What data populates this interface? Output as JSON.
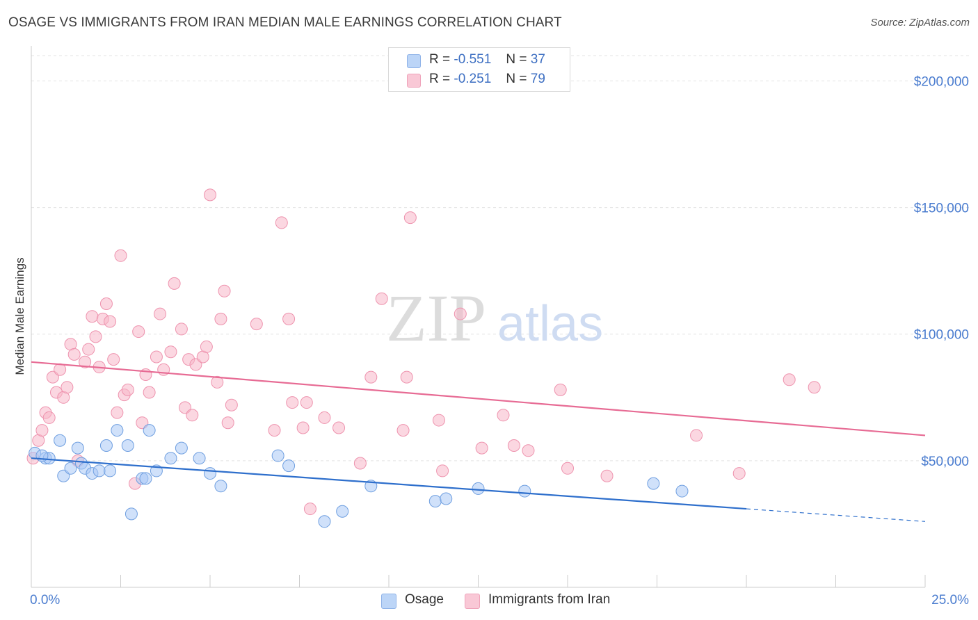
{
  "title": "OSAGE VS IMMIGRANTS FROM IRAN MEDIAN MALE EARNINGS CORRELATION CHART",
  "source": "Source: ZipAtlas.com",
  "watermark": {
    "zip": "ZIP",
    "atlas": "atlas"
  },
  "legend": {
    "rows": [
      {
        "r_label": "R =",
        "r_value": "-0.551",
        "n_label": "N =",
        "n_value": "37",
        "color": "#a9c8f5"
      },
      {
        "r_label": "R =",
        "r_value": "-0.251",
        "n_label": "N =",
        "n_value": "79",
        "color": "#f7b6c9"
      }
    ]
  },
  "bottom_legend": {
    "osage": "Osage",
    "iran": "Immigrants from Iran"
  },
  "chart_data": {
    "type": "scatter",
    "title": "OSAGE VS IMMIGRANTS FROM IRAN MEDIAN MALE EARNINGS CORRELATION CHART",
    "xlabel": "",
    "ylabel": "Median Male Earnings",
    "xlim": [
      0,
      25
    ],
    "ylim": [
      0,
      210000
    ],
    "x_tick_labels": [
      "0.0%",
      "25.0%"
    ],
    "y_ticks": [
      50000,
      100000,
      150000,
      200000
    ],
    "y_tick_labels": [
      "$50,000",
      "$100,000",
      "$150,000",
      "$200,000"
    ],
    "grid": "horizontal dashed",
    "legend_position": "top-center",
    "series": [
      {
        "name": "Osage",
        "color": "#a9c8f5",
        "stroke": "#6f9fe0",
        "trend_color": "#2e6fcc",
        "trend": {
          "x0": 0,
          "y0": 51000,
          "x1": 20,
          "y1": 31000,
          "dash_to": 25,
          "dash_y": 26000
        },
        "points": [
          [
            0.1,
            53000
          ],
          [
            0.4,
            51000
          ],
          [
            0.8,
            58000
          ],
          [
            0.5,
            51000
          ],
          [
            0.9,
            44000
          ],
          [
            1.1,
            47000
          ],
          [
            1.3,
            55000
          ],
          [
            1.4,
            49000
          ],
          [
            1.5,
            47000
          ],
          [
            1.7,
            45000
          ],
          [
            1.9,
            46000
          ],
          [
            2.1,
            56000
          ],
          [
            2.2,
            46000
          ],
          [
            2.4,
            62000
          ],
          [
            2.7,
            56000
          ],
          [
            2.8,
            29000
          ],
          [
            3.1,
            43000
          ],
          [
            3.2,
            43000
          ],
          [
            3.3,
            62000
          ],
          [
            3.5,
            46000
          ],
          [
            3.9,
            51000
          ],
          [
            4.2,
            55000
          ],
          [
            4.7,
            51000
          ],
          [
            5.0,
            45000
          ],
          [
            5.3,
            40000
          ],
          [
            6.9,
            52000
          ],
          [
            7.2,
            48000
          ],
          [
            8.2,
            26000
          ],
          [
            8.7,
            30000
          ],
          [
            9.5,
            40000
          ],
          [
            11.3,
            34000
          ],
          [
            11.6,
            35000
          ],
          [
            12.5,
            39000
          ],
          [
            13.8,
            38000
          ],
          [
            17.4,
            41000
          ],
          [
            18.2,
            38000
          ],
          [
            0.3,
            52000
          ]
        ]
      },
      {
        "name": "Immigrants from Iran",
        "color": "#f7b6c9",
        "stroke": "#ee93ae",
        "trend_color": "#e76b94",
        "trend": {
          "x0": 0,
          "y0": 89000,
          "x1": 25,
          "y1": 60000
        },
        "points": [
          [
            0.05,
            51000
          ],
          [
            0.2,
            58000
          ],
          [
            0.3,
            62000
          ],
          [
            0.4,
            69000
          ],
          [
            0.5,
            67000
          ],
          [
            0.6,
            83000
          ],
          [
            0.7,
            77000
          ],
          [
            0.8,
            86000
          ],
          [
            0.9,
            75000
          ],
          [
            1.0,
            79000
          ],
          [
            1.1,
            96000
          ],
          [
            1.2,
            92000
          ],
          [
            1.3,
            50000
          ],
          [
            1.5,
            89000
          ],
          [
            1.6,
            94000
          ],
          [
            1.7,
            107000
          ],
          [
            1.8,
            99000
          ],
          [
            1.9,
            87000
          ],
          [
            2.0,
            106000
          ],
          [
            2.1,
            112000
          ],
          [
            2.2,
            105000
          ],
          [
            2.3,
            90000
          ],
          [
            2.4,
            69000
          ],
          [
            2.5,
            131000
          ],
          [
            2.6,
            76000
          ],
          [
            2.7,
            78000
          ],
          [
            2.9,
            41000
          ],
          [
            3.0,
            101000
          ],
          [
            3.1,
            65000
          ],
          [
            3.2,
            84000
          ],
          [
            3.3,
            77000
          ],
          [
            3.5,
            91000
          ],
          [
            3.6,
            108000
          ],
          [
            3.7,
            86000
          ],
          [
            3.9,
            93000
          ],
          [
            4.0,
            120000
          ],
          [
            4.2,
            102000
          ],
          [
            4.3,
            71000
          ],
          [
            4.4,
            90000
          ],
          [
            4.5,
            68000
          ],
          [
            4.6,
            88000
          ],
          [
            4.8,
            91000
          ],
          [
            4.9,
            95000
          ],
          [
            5.0,
            155000
          ],
          [
            5.2,
            81000
          ],
          [
            5.3,
            106000
          ],
          [
            5.4,
            117000
          ],
          [
            5.5,
            65000
          ],
          [
            5.6,
            72000
          ],
          [
            6.3,
            104000
          ],
          [
            6.8,
            62000
          ],
          [
            7.0,
            144000
          ],
          [
            7.2,
            106000
          ],
          [
            7.3,
            73000
          ],
          [
            7.6,
            63000
          ],
          [
            7.7,
            73000
          ],
          [
            7.8,
            31000
          ],
          [
            8.2,
            67000
          ],
          [
            8.6,
            63000
          ],
          [
            9.2,
            49000
          ],
          [
            9.5,
            83000
          ],
          [
            9.8,
            114000
          ],
          [
            10.4,
            62000
          ],
          [
            10.5,
            83000
          ],
          [
            10.6,
            146000
          ],
          [
            11.4,
            66000
          ],
          [
            11.5,
            46000
          ],
          [
            12.0,
            108000
          ],
          [
            12.6,
            55000
          ],
          [
            13.2,
            68000
          ],
          [
            13.5,
            56000
          ],
          [
            13.9,
            54000
          ],
          [
            14.8,
            78000
          ],
          [
            15.0,
            47000
          ],
          [
            16.1,
            44000
          ],
          [
            18.6,
            60000
          ],
          [
            19.8,
            45000
          ],
          [
            21.2,
            82000
          ],
          [
            21.9,
            79000
          ]
        ]
      }
    ]
  }
}
